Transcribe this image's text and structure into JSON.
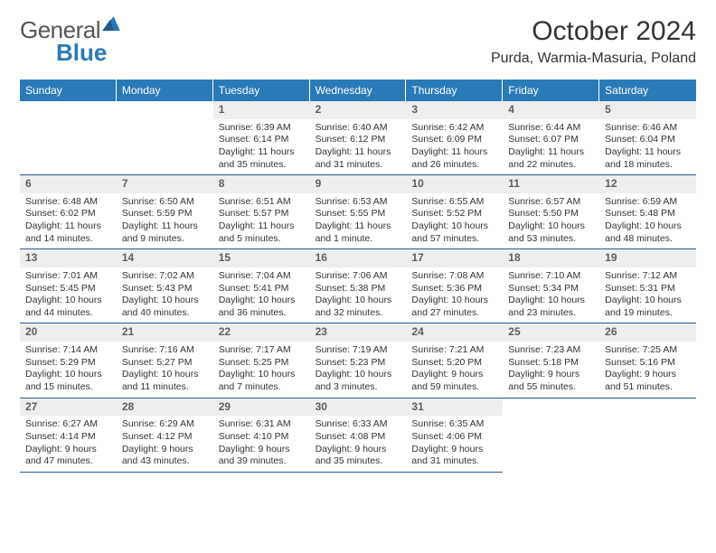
{
  "brand": {
    "general": "General",
    "blue": "Blue"
  },
  "title": "October 2024",
  "location": "Purda, Warmia-Masuria, Poland",
  "colors": {
    "header_bg": "#2a7ab8",
    "header_text": "#ffffff",
    "daynum_bg": "#eeeeee",
    "daynum_text": "#5e5e5e",
    "cell_border": "#2a5a8a",
    "body_text": "#333333",
    "logo_gray": "#555555",
    "logo_blue": "#2a7ab8",
    "background": "#ffffff"
  },
  "typography": {
    "title_fontsize": 30,
    "location_fontsize": 16,
    "dayhead_fontsize": 12,
    "daynum_fontsize": 12,
    "cell_fontsize": 10.5,
    "font_family": "Arial"
  },
  "dayheads": [
    "Sunday",
    "Monday",
    "Tuesday",
    "Wednesday",
    "Thursday",
    "Friday",
    "Saturday"
  ],
  "weeks": [
    [
      {
        "n": "",
        "sr": "",
        "ss": "",
        "dl": ""
      },
      {
        "n": "",
        "sr": "",
        "ss": "",
        "dl": ""
      },
      {
        "n": "1",
        "sr": "Sunrise: 6:39 AM",
        "ss": "Sunset: 6:14 PM",
        "dl": "Daylight: 11 hours and 35 minutes."
      },
      {
        "n": "2",
        "sr": "Sunrise: 6:40 AM",
        "ss": "Sunset: 6:12 PM",
        "dl": "Daylight: 11 hours and 31 minutes."
      },
      {
        "n": "3",
        "sr": "Sunrise: 6:42 AM",
        "ss": "Sunset: 6:09 PM",
        "dl": "Daylight: 11 hours and 26 minutes."
      },
      {
        "n": "4",
        "sr": "Sunrise: 6:44 AM",
        "ss": "Sunset: 6:07 PM",
        "dl": "Daylight: 11 hours and 22 minutes."
      },
      {
        "n": "5",
        "sr": "Sunrise: 6:46 AM",
        "ss": "Sunset: 6:04 PM",
        "dl": "Daylight: 11 hours and 18 minutes."
      }
    ],
    [
      {
        "n": "6",
        "sr": "Sunrise: 6:48 AM",
        "ss": "Sunset: 6:02 PM",
        "dl": "Daylight: 11 hours and 14 minutes."
      },
      {
        "n": "7",
        "sr": "Sunrise: 6:50 AM",
        "ss": "Sunset: 5:59 PM",
        "dl": "Daylight: 11 hours and 9 minutes."
      },
      {
        "n": "8",
        "sr": "Sunrise: 6:51 AM",
        "ss": "Sunset: 5:57 PM",
        "dl": "Daylight: 11 hours and 5 minutes."
      },
      {
        "n": "9",
        "sr": "Sunrise: 6:53 AM",
        "ss": "Sunset: 5:55 PM",
        "dl": "Daylight: 11 hours and 1 minute."
      },
      {
        "n": "10",
        "sr": "Sunrise: 6:55 AM",
        "ss": "Sunset: 5:52 PM",
        "dl": "Daylight: 10 hours and 57 minutes."
      },
      {
        "n": "11",
        "sr": "Sunrise: 6:57 AM",
        "ss": "Sunset: 5:50 PM",
        "dl": "Daylight: 10 hours and 53 minutes."
      },
      {
        "n": "12",
        "sr": "Sunrise: 6:59 AM",
        "ss": "Sunset: 5:48 PM",
        "dl": "Daylight: 10 hours and 48 minutes."
      }
    ],
    [
      {
        "n": "13",
        "sr": "Sunrise: 7:01 AM",
        "ss": "Sunset: 5:45 PM",
        "dl": "Daylight: 10 hours and 44 minutes."
      },
      {
        "n": "14",
        "sr": "Sunrise: 7:02 AM",
        "ss": "Sunset: 5:43 PM",
        "dl": "Daylight: 10 hours and 40 minutes."
      },
      {
        "n": "15",
        "sr": "Sunrise: 7:04 AM",
        "ss": "Sunset: 5:41 PM",
        "dl": "Daylight: 10 hours and 36 minutes."
      },
      {
        "n": "16",
        "sr": "Sunrise: 7:06 AM",
        "ss": "Sunset: 5:38 PM",
        "dl": "Daylight: 10 hours and 32 minutes."
      },
      {
        "n": "17",
        "sr": "Sunrise: 7:08 AM",
        "ss": "Sunset: 5:36 PM",
        "dl": "Daylight: 10 hours and 27 minutes."
      },
      {
        "n": "18",
        "sr": "Sunrise: 7:10 AM",
        "ss": "Sunset: 5:34 PM",
        "dl": "Daylight: 10 hours and 23 minutes."
      },
      {
        "n": "19",
        "sr": "Sunrise: 7:12 AM",
        "ss": "Sunset: 5:31 PM",
        "dl": "Daylight: 10 hours and 19 minutes."
      }
    ],
    [
      {
        "n": "20",
        "sr": "Sunrise: 7:14 AM",
        "ss": "Sunset: 5:29 PM",
        "dl": "Daylight: 10 hours and 15 minutes."
      },
      {
        "n": "21",
        "sr": "Sunrise: 7:16 AM",
        "ss": "Sunset: 5:27 PM",
        "dl": "Daylight: 10 hours and 11 minutes."
      },
      {
        "n": "22",
        "sr": "Sunrise: 7:17 AM",
        "ss": "Sunset: 5:25 PM",
        "dl": "Daylight: 10 hours and 7 minutes."
      },
      {
        "n": "23",
        "sr": "Sunrise: 7:19 AM",
        "ss": "Sunset: 5:23 PM",
        "dl": "Daylight: 10 hours and 3 minutes."
      },
      {
        "n": "24",
        "sr": "Sunrise: 7:21 AM",
        "ss": "Sunset: 5:20 PM",
        "dl": "Daylight: 9 hours and 59 minutes."
      },
      {
        "n": "25",
        "sr": "Sunrise: 7:23 AM",
        "ss": "Sunset: 5:18 PM",
        "dl": "Daylight: 9 hours and 55 minutes."
      },
      {
        "n": "26",
        "sr": "Sunrise: 7:25 AM",
        "ss": "Sunset: 5:16 PM",
        "dl": "Daylight: 9 hours and 51 minutes."
      }
    ],
    [
      {
        "n": "27",
        "sr": "Sunrise: 6:27 AM",
        "ss": "Sunset: 4:14 PM",
        "dl": "Daylight: 9 hours and 47 minutes."
      },
      {
        "n": "28",
        "sr": "Sunrise: 6:29 AM",
        "ss": "Sunset: 4:12 PM",
        "dl": "Daylight: 9 hours and 43 minutes."
      },
      {
        "n": "29",
        "sr": "Sunrise: 6:31 AM",
        "ss": "Sunset: 4:10 PM",
        "dl": "Daylight: 9 hours and 39 minutes."
      },
      {
        "n": "30",
        "sr": "Sunrise: 6:33 AM",
        "ss": "Sunset: 4:08 PM",
        "dl": "Daylight: 9 hours and 35 minutes."
      },
      {
        "n": "31",
        "sr": "Sunrise: 6:35 AM",
        "ss": "Sunset: 4:06 PM",
        "dl": "Daylight: 9 hours and 31 minutes."
      },
      {
        "n": "",
        "sr": "",
        "ss": "",
        "dl": ""
      },
      {
        "n": "",
        "sr": "",
        "ss": "",
        "dl": ""
      }
    ]
  ]
}
